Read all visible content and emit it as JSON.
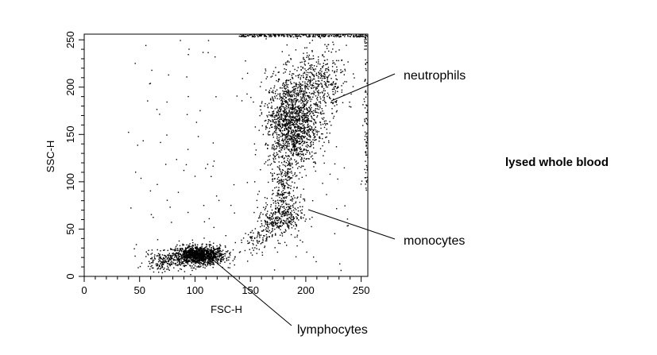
{
  "side_label": "lysed whole blood",
  "chart_data": {
    "type": "scatter",
    "title": "",
    "xlabel": "FSC-H",
    "ylabel": "SSC-H",
    "xlim": [
      0,
      256
    ],
    "ylim": [
      0,
      256
    ],
    "x_ticks": [
      0,
      50,
      100,
      150,
      200,
      250
    ],
    "y_ticks": [
      0,
      50,
      100,
      150,
      200,
      250
    ],
    "grid": false,
    "point_color": "#000000",
    "populations": [
      {
        "name": "lymphocytes",
        "center": [
          103,
          22
        ],
        "spread": [
          12,
          5
        ],
        "count": 1300
      },
      {
        "name": "lymphocytes-tail",
        "center": [
          70,
          15
        ],
        "spread": [
          8,
          5
        ],
        "count": 140
      },
      {
        "name": "monocytes",
        "center": [
          180,
          66
        ],
        "spread": [
          9,
          13
        ],
        "count": 320
      },
      {
        "name": "neutrophils",
        "center": [
          188,
          162
        ],
        "spread": [
          12,
          25
        ],
        "count": 1500
      },
      {
        "name": "neutrophils-upper",
        "center": [
          212,
          205
        ],
        "spread": [
          12,
          18
        ],
        "count": 420
      }
    ],
    "annotations": [
      {
        "text": "neutrophils",
        "point": [
          206,
          184
        ]
      },
      {
        "text": "monocytes",
        "point": [
          190,
          68
        ]
      },
      {
        "text": "lymphocytes",
        "point": [
          114,
          20
        ]
      }
    ]
  }
}
